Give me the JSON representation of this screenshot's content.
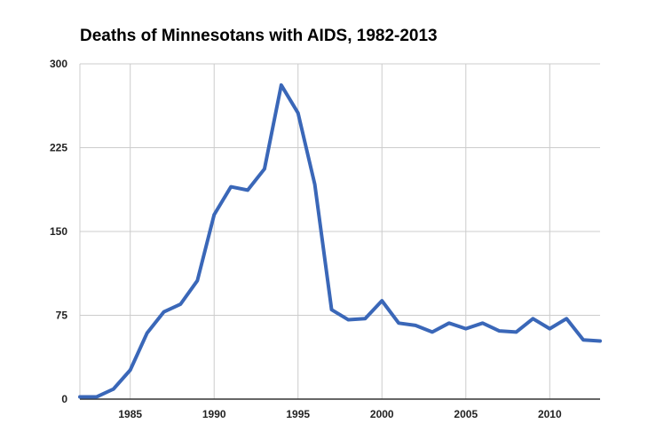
{
  "chart_data": {
    "type": "line",
    "title": "Deaths of Minnesotans with AIDS, 1982-2013",
    "xlabel": "",
    "ylabel": "",
    "xlim": [
      1982,
      2013
    ],
    "ylim": [
      0,
      300
    ],
    "xticks": [
      1985,
      1990,
      1995,
      2000,
      2005,
      2010
    ],
    "yticks": [
      0,
      75,
      150,
      225,
      300
    ],
    "grid": true,
    "legend": "none",
    "line_color": "#3a67b8",
    "series": [
      {
        "x": [
          1982,
          1983,
          1984,
          1985,
          1986,
          1987,
          1988,
          1989,
          1990,
          1991,
          1992,
          1993,
          1994,
          1995,
          1996,
          1997,
          1998,
          1999,
          2000,
          2001,
          2002,
          2003,
          2004,
          2005,
          2006,
          2007,
          2008,
          2009,
          2010,
          2011,
          2012,
          2013
        ],
        "values": [
          2,
          2,
          9,
          26,
          59,
          78,
          85,
          106,
          165,
          190,
          187,
          206,
          281,
          256,
          192,
          80,
          71,
          72,
          88,
          68,
          66,
          60,
          68,
          63,
          68,
          61,
          60,
          72,
          63,
          72,
          53,
          52
        ]
      }
    ]
  }
}
